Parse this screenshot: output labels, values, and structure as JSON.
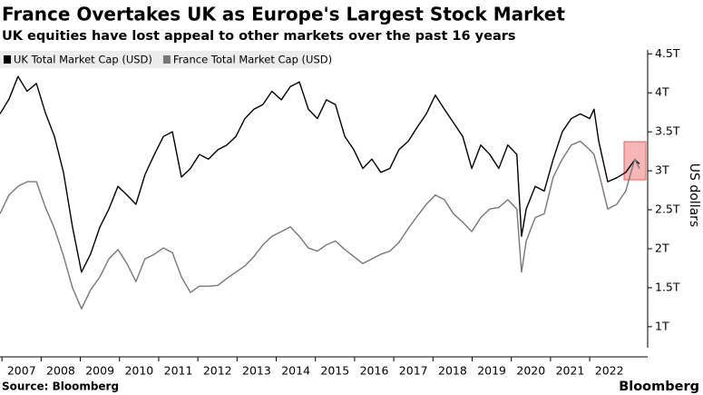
{
  "chart_data": {
    "type": "line",
    "title": "France Overtakes UK as Europe's Largest Stock Market",
    "subtitle": "UK equities have lost appeal to other markets over the past 16 years",
    "y_axis_label": "US dollars",
    "source": "Source: Bloomberg",
    "logo": "Bloomberg",
    "legend": "upper left",
    "grid": false,
    "xlim": [
      2006.95,
      2023.41
    ],
    "xticks": [
      2007,
      2008,
      2009,
      2010,
      2011,
      2012,
      2013,
      2014,
      2015,
      2016,
      2017,
      2018,
      2019,
      2020,
      2021,
      2022
    ],
    "ylim": [
      0.73,
      4.55
    ],
    "yticks": [
      {
        "value": 1,
        "label": "1T"
      },
      {
        "value": 1.5,
        "label": "1.5T"
      },
      {
        "value": 2,
        "label": "2T"
      },
      {
        "value": 2.5,
        "label": "2.5T"
      },
      {
        "value": 3,
        "label": "3T"
      },
      {
        "value": 3.5,
        "label": "3.5T"
      },
      {
        "value": 4,
        "label": "4T"
      },
      {
        "value": 4.5,
        "label": "4.5T"
      }
    ],
    "x": [
      2006.95,
      2007.18,
      2007.41,
      2007.64,
      2007.88,
      2008.11,
      2008.34,
      2008.57,
      2008.8,
      2009.03,
      2009.26,
      2009.5,
      2009.73,
      2009.96,
      2010.19,
      2010.42,
      2010.65,
      2010.89,
      2011.12,
      2011.35,
      2011.58,
      2011.81,
      2012.04,
      2012.27,
      2012.51,
      2012.74,
      2012.97,
      2013.2,
      2013.43,
      2013.66,
      2013.89,
      2014.13,
      2014.36,
      2014.59,
      2014.82,
      2015.05,
      2015.28,
      2015.51,
      2015.75,
      2015.98,
      2016.21,
      2016.44,
      2016.67,
      2016.9,
      2017.13,
      2017.37,
      2017.6,
      2017.83,
      2018.06,
      2018.29,
      2018.52,
      2018.76,
      2018.99,
      2019.22,
      2019.45,
      2019.68,
      2019.91,
      2020.14,
      2020.26,
      2020.38,
      2020.61,
      2020.84,
      2021.07,
      2021.3,
      2021.53,
      2021.76,
      2022.0,
      2022.11,
      2022.23,
      2022.46,
      2022.69,
      2022.92,
      2023.15,
      2023.27
    ],
    "series": [
      {
        "name": "UK Total Market Cap (USD)",
        "color": "#000000",
        "values": [
          3.73,
          3.92,
          4.21,
          4.02,
          4.12,
          3.74,
          3.44,
          2.98,
          2.28,
          1.7,
          1.93,
          2.28,
          2.51,
          2.8,
          2.69,
          2.57,
          2.95,
          3.21,
          3.44,
          3.5,
          2.92,
          3.03,
          3.21,
          3.15,
          3.27,
          3.33,
          3.44,
          3.67,
          3.79,
          3.85,
          4.02,
          3.91,
          4.08,
          4.14,
          3.79,
          3.67,
          3.91,
          3.85,
          3.44,
          3.27,
          3.03,
          3.15,
          2.98,
          3.03,
          3.27,
          3.38,
          3.56,
          3.73,
          3.97,
          3.79,
          3.62,
          3.44,
          3.03,
          3.33,
          3.21,
          3.03,
          3.33,
          3.21,
          2.16,
          2.51,
          2.8,
          2.74,
          3.15,
          3.5,
          3.67,
          3.73,
          3.67,
          3.79,
          3.38,
          2.86,
          2.91,
          2.98,
          3.14,
          3.09
        ]
      },
      {
        "name": "France Total Market Cap (USD)",
        "color": "#777777",
        "values": [
          2.45,
          2.69,
          2.8,
          2.86,
          2.86,
          2.53,
          2.26,
          1.91,
          1.5,
          1.23,
          1.47,
          1.64,
          1.87,
          1.99,
          1.81,
          1.58,
          1.87,
          1.93,
          2.01,
          1.95,
          1.64,
          1.44,
          1.52,
          1.52,
          1.53,
          1.62,
          1.7,
          1.78,
          1.9,
          2.05,
          2.16,
          2.22,
          2.28,
          2.16,
          2.01,
          1.97,
          2.05,
          2.1,
          1.99,
          1.9,
          1.81,
          1.87,
          1.93,
          1.97,
          2.08,
          2.26,
          2.42,
          2.57,
          2.69,
          2.63,
          2.45,
          2.34,
          2.22,
          2.4,
          2.51,
          2.53,
          2.63,
          2.51,
          1.7,
          2.1,
          2.4,
          2.45,
          2.92,
          3.15,
          3.33,
          3.38,
          3.27,
          3.21,
          2.98,
          2.51,
          2.57,
          2.74,
          3.15,
          3.03
        ]
      }
    ]
  }
}
